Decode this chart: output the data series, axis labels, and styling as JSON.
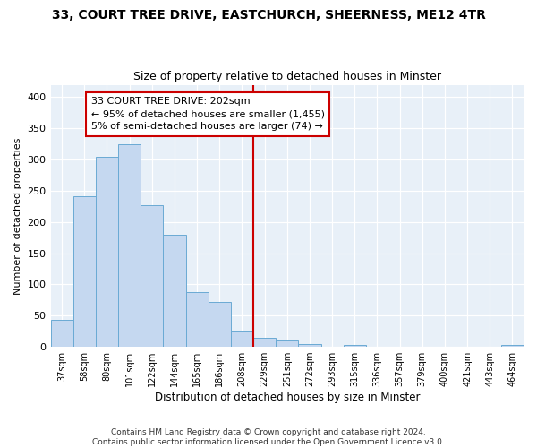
{
  "title1": "33, COURT TREE DRIVE, EASTCHURCH, SHEERNESS, ME12 4TR",
  "title2": "Size of property relative to detached houses in Minster",
  "xlabel": "Distribution of detached houses by size in Minster",
  "ylabel": "Number of detached properties",
  "categories": [
    "37sqm",
    "58sqm",
    "80sqm",
    "101sqm",
    "122sqm",
    "144sqm",
    "165sqm",
    "186sqm",
    "208sqm",
    "229sqm",
    "251sqm",
    "272sqm",
    "293sqm",
    "315sqm",
    "336sqm",
    "357sqm",
    "379sqm",
    "400sqm",
    "421sqm",
    "443sqm",
    "464sqm"
  ],
  "values": [
    43,
    241,
    305,
    325,
    227,
    180,
    88,
    72,
    26,
    15,
    10,
    4,
    0,
    3,
    0,
    0,
    0,
    0,
    0,
    0,
    3
  ],
  "bar_color": "#c5d8f0",
  "bar_edge_color": "#6aaad4",
  "vline_x": 8.5,
  "vline_color": "#cc0000",
  "annotation_line1": "33 COURT TREE DRIVE: 202sqm",
  "annotation_line2": "← 95% of detached houses are smaller (1,455)",
  "annotation_line3": "5% of semi-detached houses are larger (74) →",
  "annotation_box_color": "#ffffff",
  "annotation_box_edge": "#cc0000",
  "footer1": "Contains HM Land Registry data © Crown copyright and database right 2024.",
  "footer2": "Contains public sector information licensed under the Open Government Licence v3.0.",
  "ylim": [
    0,
    420
  ],
  "yticks": [
    0,
    50,
    100,
    150,
    200,
    250,
    300,
    350,
    400
  ],
  "background_color": "#e8f0f8"
}
